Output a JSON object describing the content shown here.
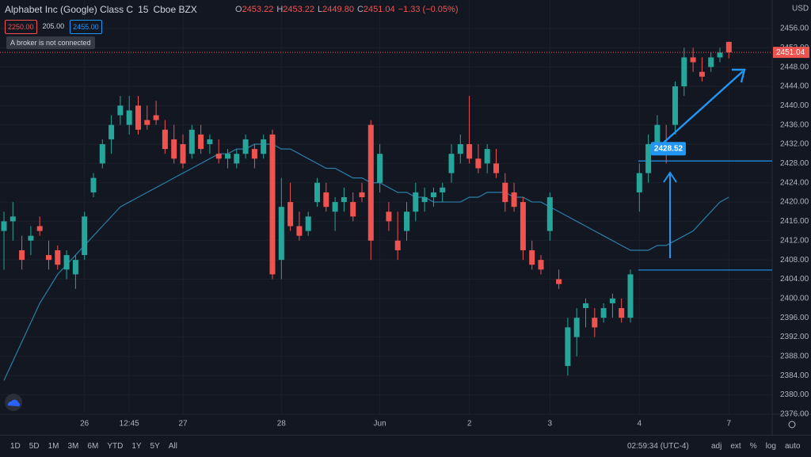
{
  "header": {
    "title": "Alphabet Inc (Google) Class C",
    "interval": "15",
    "exchange": "Cboe BZX",
    "o_label": "O",
    "open": "2453.22",
    "h_label": "H",
    "high": "2453.22",
    "l_label": "L",
    "low": "2449.80",
    "c_label": "C",
    "close": "2451.04",
    "change": "−1.33 (−0.05%)",
    "sell": "2250.00",
    "spread": "205.00",
    "buy": "2455.00",
    "broker": "A broker is not connected"
  },
  "toolbar": {
    "ranges": [
      "1D",
      "5D",
      "1M",
      "3M",
      "6M",
      "YTD",
      "1Y",
      "5Y",
      "All"
    ],
    "time": "02:59:34 (UTC-4)",
    "options": [
      "adj",
      "ext",
      "%",
      "log",
      "auto"
    ]
  },
  "chart_data": {
    "type": "candlestick",
    "currency": "USD",
    "up_color": "#26a69a",
    "down_color": "#ef5350",
    "ma_color": "#2a7fa8",
    "categories": [
      null,
      null,
      null,
      null,
      null,
      null,
      null,
      null,
      null,
      "26",
      null,
      null,
      null,
      null,
      "12:45",
      null,
      null,
      null,
      null,
      null,
      "27",
      null,
      null,
      null,
      null,
      null,
      null,
      null,
      null,
      null,
      null,
      "28",
      null,
      null,
      null,
      null,
      null,
      null,
      null,
      null,
      null,
      null,
      "Jun",
      null,
      null,
      null,
      null,
      null,
      null,
      null,
      null,
      null,
      "2",
      null,
      null,
      null,
      null,
      null,
      null,
      null,
      null,
      "3",
      null,
      null,
      null,
      null,
      null,
      null,
      null,
      null,
      null,
      "4",
      null,
      null,
      null,
      null,
      null,
      null,
      null,
      null,
      null,
      "7"
    ],
    "ohlc": [
      [
        2414,
        2418,
        2406,
        2416
      ],
      [
        2416,
        2420,
        2412,
        2417
      ],
      [
        2410,
        2413,
        2406,
        2408
      ],
      [
        2412,
        2415,
        2409,
        2413
      ],
      [
        2415,
        2417,
        2413,
        2414
      ],
      [
        2409,
        2412,
        2406,
        2408
      ],
      [
        2410,
        2411,
        2406,
        2407
      ],
      [
        2406,
        2410,
        2404,
        2409
      ],
      [
        2405,
        2409,
        2402,
        2408
      ],
      [
        2409,
        2418,
        2408,
        2417
      ],
      [
        2422,
        2426,
        2421,
        2425
      ],
      [
        2428,
        2433,
        2427,
        2432
      ],
      [
        2433,
        2438,
        2430,
        2436
      ],
      [
        2438,
        2442,
        2436,
        2440
      ],
      [
        2436,
        2442,
        2434,
        2439
      ],
      [
        2440,
        2442,
        2434,
        2435
      ],
      [
        2437,
        2440,
        2435,
        2436
      ],
      [
        2438,
        2441,
        2436,
        2437
      ],
      [
        2435,
        2437,
        2430,
        2431
      ],
      [
        2433,
        2436,
        2428,
        2429
      ],
      [
        2432,
        2434,
        2427,
        2428
      ],
      [
        2430,
        2436,
        2429,
        2435
      ],
      [
        2434,
        2436,
        2430,
        2431
      ],
      [
        2432,
        2434,
        2430,
        2433
      ],
      [
        2430,
        2433,
        2428,
        2429
      ],
      [
        2429,
        2431,
        2427,
        2430
      ],
      [
        2428,
        2431,
        2427,
        2430
      ],
      [
        2430,
        2434,
        2429,
        2433
      ],
      [
        2431,
        2432,
        2427,
        2429
      ],
      [
        2430,
        2434,
        2429,
        2433
      ],
      [
        2434,
        2435,
        2404,
        2405
      ],
      [
        2408,
        2425,
        2404,
        2419
      ],
      [
        2420,
        2424,
        2414,
        2415
      ],
      [
        2415,
        2418,
        2412,
        2413
      ],
      [
        2414,
        2418,
        2413,
        2417
      ],
      [
        2420,
        2425,
        2419,
        2424
      ],
      [
        2422,
        2424,
        2418,
        2419
      ],
      [
        2418,
        2421,
        2414,
        2420
      ],
      [
        2420,
        2423,
        2418,
        2421
      ],
      [
        2420,
        2422,
        2416,
        2417
      ],
      [
        2422,
        2424,
        2420,
        2421
      ],
      [
        2436,
        2437,
        2408,
        2412
      ],
      [
        2424,
        2432,
        2422,
        2430
      ],
      [
        2418,
        2420,
        2414,
        2416
      ],
      [
        2412,
        2418,
        2408,
        2410
      ],
      [
        2414,
        2420,
        2412,
        2418
      ],
      [
        2418,
        2424,
        2416,
        2422
      ],
      [
        2420,
        2423,
        2418,
        2421
      ],
      [
        2421,
        2423,
        2419,
        2422
      ],
      [
        2422,
        2424,
        2420,
        2423
      ],
      [
        2426,
        2432,
        2424,
        2430
      ],
      [
        2430,
        2434,
        2428,
        2432
      ],
      [
        2432,
        2442,
        2428,
        2429
      ],
      [
        2429,
        2432,
        2426,
        2427
      ],
      [
        2428,
        2432,
        2426,
        2431
      ],
      [
        2428,
        2431,
        2425,
        2426
      ],
      [
        2424,
        2426,
        2418,
        2420
      ],
      [
        2422,
        2424,
        2418,
        2419
      ],
      [
        2420,
        2421,
        2408,
        2410
      ],
      [
        2410,
        2412,
        2406,
        2407
      ],
      [
        2408,
        2409,
        2405,
        2406
      ],
      [
        2414,
        2422,
        2412,
        2421
      ],
      [
        2404,
        2406,
        2402,
        2403
      ],
      [
        2386,
        2396,
        2384,
        2394
      ],
      [
        2392,
        2398,
        2388,
        2396
      ],
      [
        2398,
        2400,
        2394,
        2399
      ],
      [
        2396,
        2398,
        2392,
        2394
      ],
      [
        2396,
        2399,
        2395,
        2398
      ],
      [
        2399,
        2401,
        2396,
        2400
      ],
      [
        2398,
        2400,
        2395,
        2396
      ],
      [
        2396,
        2406,
        2395,
        2405
      ],
      [
        2422,
        2428,
        2418,
        2426
      ],
      [
        2426,
        2434,
        2424,
        2432
      ],
      [
        2432,
        2438,
        2430,
        2436
      ],
      [
        2432,
        2436,
        2428,
        2431
      ],
      [
        2436,
        2445,
        2434,
        2444
      ],
      [
        2444,
        2452,
        2442,
        2450
      ],
      [
        2450,
        2452,
        2447,
        2449
      ],
      [
        2447,
        2450,
        2445,
        2446
      ],
      [
        2448,
        2451,
        2447,
        2450
      ],
      [
        2450,
        2452,
        2449,
        2451
      ],
      [
        2453.22,
        2453.22,
        2449.8,
        2451.04
      ]
    ],
    "moving_average": [
      2383,
      2387,
      2391,
      2395,
      2399,
      2402,
      2405,
      2407,
      2409,
      2411,
      2413,
      2415,
      2417,
      2419,
      2420,
      2421,
      2422,
      2423,
      2424,
      2425,
      2426,
      2427,
      2428,
      2429,
      2430,
      2430,
      2431,
      2431,
      2432,
      2432,
      2432,
      2431,
      2431,
      2430,
      2429,
      2428,
      2427,
      2427,
      2426,
      2425,
      2425,
      2424,
      2424,
      2423,
      2422,
      2422,
      2421,
      2421,
      2420,
      2420,
      2420,
      2420,
      2421,
      2421,
      2422,
      2422,
      2422,
      2421,
      2421,
      2420,
      2420,
      2419,
      2418,
      2417,
      2416,
      2415,
      2414,
      2413,
      2412,
      2411,
      2410,
      2410,
      2410,
      2411,
      2411,
      2412,
      2413,
      2414,
      2416,
      2418,
      2420,
      2421
    ],
    "annotations": [
      {
        "value": 2428.52,
        "color": "#2196f3"
      },
      {
        "value": 2405.9,
        "color": "#2196f3"
      }
    ],
    "ylim": [
      2373.2,
      2461.9
    ],
    "yticks": [
      {
        "value": 2376,
        "label": "2376.00"
      },
      {
        "value": 2380,
        "label": "2380.00"
      },
      {
        "value": 2384,
        "label": "2384.00"
      },
      {
        "value": 2388,
        "label": "2388.00"
      },
      {
        "value": 2392,
        "label": "2392.00"
      },
      {
        "value": 2396,
        "label": "2396.00"
      },
      {
        "value": 2400,
        "label": "2400.00"
      },
      {
        "value": 2404,
        "label": "2404.00"
      },
      {
        "value": 2408,
        "label": "2408.00"
      },
      {
        "value": 2412,
        "label": "2412.00"
      },
      {
        "value": 2416,
        "label": "2416.00"
      },
      {
        "value": 2420,
        "label": "2420.00"
      },
      {
        "value": 2424,
        "label": "2424.00"
      },
      {
        "value": 2428,
        "label": "2428.00"
      },
      {
        "value": 2432,
        "label": "2432.00"
      },
      {
        "value": 2436,
        "label": "2436.00"
      },
      {
        "value": 2440,
        "label": "2440.00"
      },
      {
        "value": 2444,
        "label": "2444.00"
      },
      {
        "value": 2448,
        "label": "2448.00"
      },
      {
        "value": 2452,
        "label": "2452.00"
      },
      {
        "value": 2456,
        "label": "2456.00"
      }
    ],
    "grid": true
  }
}
